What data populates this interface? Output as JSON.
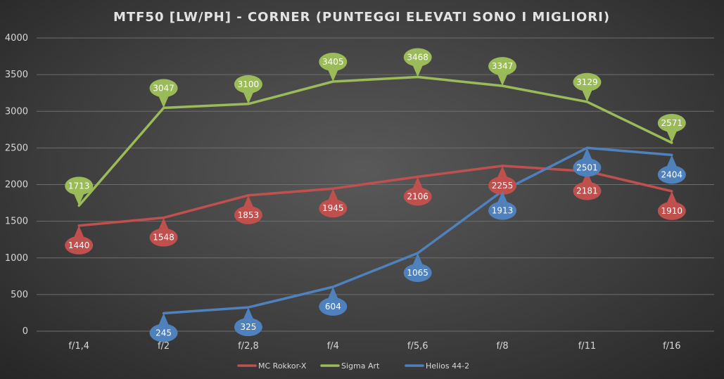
{
  "chart_data": {
    "type": "line",
    "title": "MTF50 [LW/PH] - CORNER (PUNTEGGI ELEVATI SONO I MIGLIORI)",
    "categories": [
      "f/1,4",
      "f/2",
      "f/2,8",
      "f/4",
      "f/5,6",
      "f/8",
      "f/11",
      "f/16"
    ],
    "ylim": [
      0,
      4000
    ],
    "yticks": [
      0,
      500,
      1000,
      1500,
      2000,
      2500,
      3000,
      3500,
      4000
    ],
    "grid": true,
    "legend_position": "bottom",
    "series": [
      {
        "name": "MC Rokkor-X",
        "color": "#c0504d",
        "label_side": "below",
        "values": [
          1440,
          1548,
          1853,
          1945,
          2106,
          2255,
          2181,
          1910
        ]
      },
      {
        "name": "Sigma Art",
        "color": "#9bbb59",
        "label_side": "above",
        "values": [
          1713,
          3047,
          3100,
          3405,
          3468,
          3347,
          3129,
          2571
        ]
      },
      {
        "name": "Helios 44-2",
        "color": "#4f81bd",
        "label_side": "below",
        "values": [
          null,
          245,
          325,
          604,
          1065,
          1913,
          2501,
          2404
        ]
      }
    ]
  }
}
